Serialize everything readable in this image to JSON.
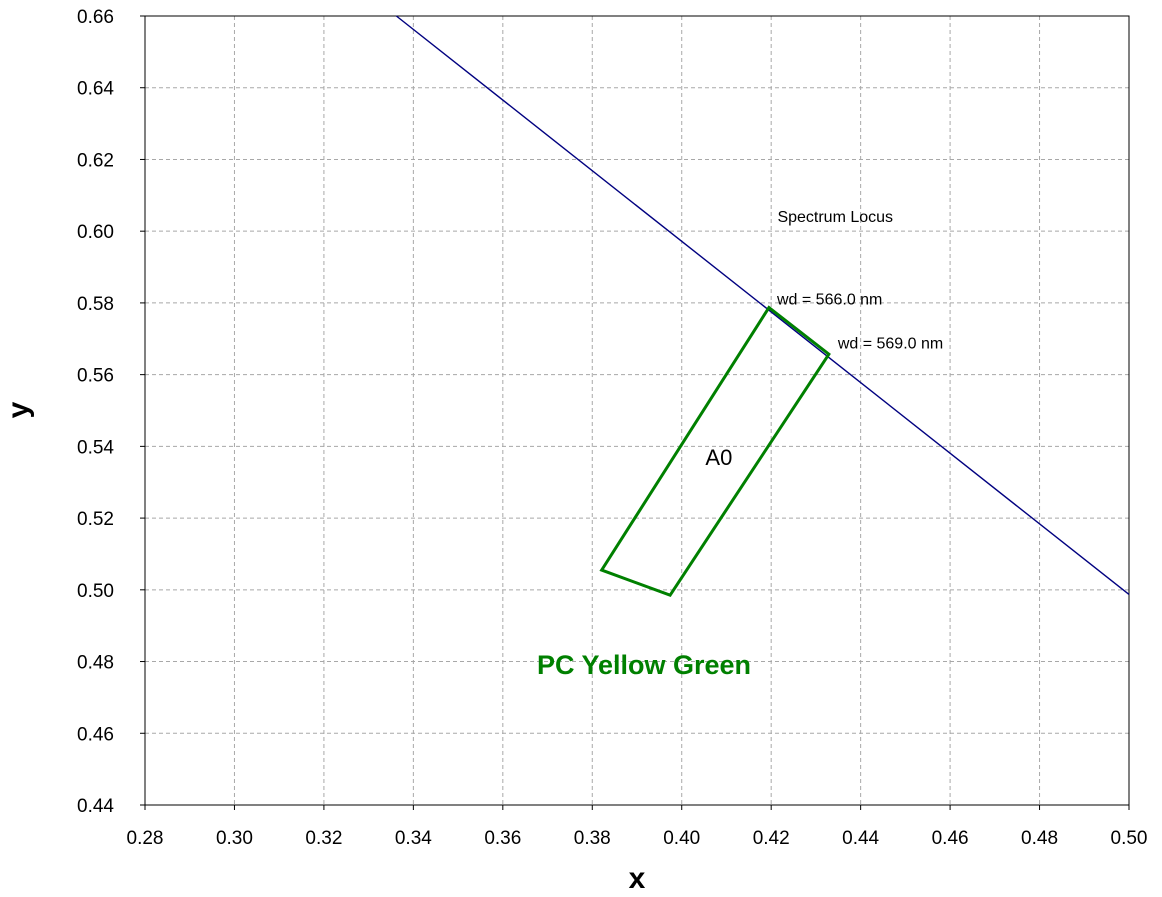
{
  "chart_data": {
    "type": "line",
    "xlabel": "x",
    "ylabel": "y",
    "xlim": [
      0.28,
      0.5
    ],
    "ylim": [
      0.44,
      0.66
    ],
    "x_ticks": [
      "0.28",
      "0.30",
      "0.32",
      "0.34",
      "0.36",
      "0.38",
      "0.40",
      "0.42",
      "0.44",
      "0.46",
      "0.48",
      "0.50"
    ],
    "y_ticks": [
      "0.44",
      "0.46",
      "0.48",
      "0.50",
      "0.52",
      "0.54",
      "0.56",
      "0.58",
      "0.60",
      "0.62",
      "0.64",
      "0.66"
    ],
    "grid": true,
    "spectrum_locus": {
      "label": "Spectrum Locus",
      "color": "#000080",
      "points": [
        [
          0.3362,
          0.66
        ],
        [
          0.5,
          0.4987
        ]
      ]
    },
    "region": {
      "label": "A0",
      "color": "#008000",
      "points": [
        [
          0.4195,
          0.5787
        ],
        [
          0.4329,
          0.5657
        ],
        [
          0.3974,
          0.4985
        ],
        [
          0.3821,
          0.5055
        ]
      ]
    },
    "annotations": [
      {
        "text": "Spectrum Locus",
        "x": 0.4214,
        "y": 0.6025
      },
      {
        "text": "wd = 566.0 nm",
        "x": 0.4213,
        "y": 0.5795
      },
      {
        "text": "wd = 569.0 nm",
        "x": 0.4349,
        "y": 0.5673
      }
    ],
    "title": "PC Yellow Green",
    "title_color": "#008000"
  }
}
